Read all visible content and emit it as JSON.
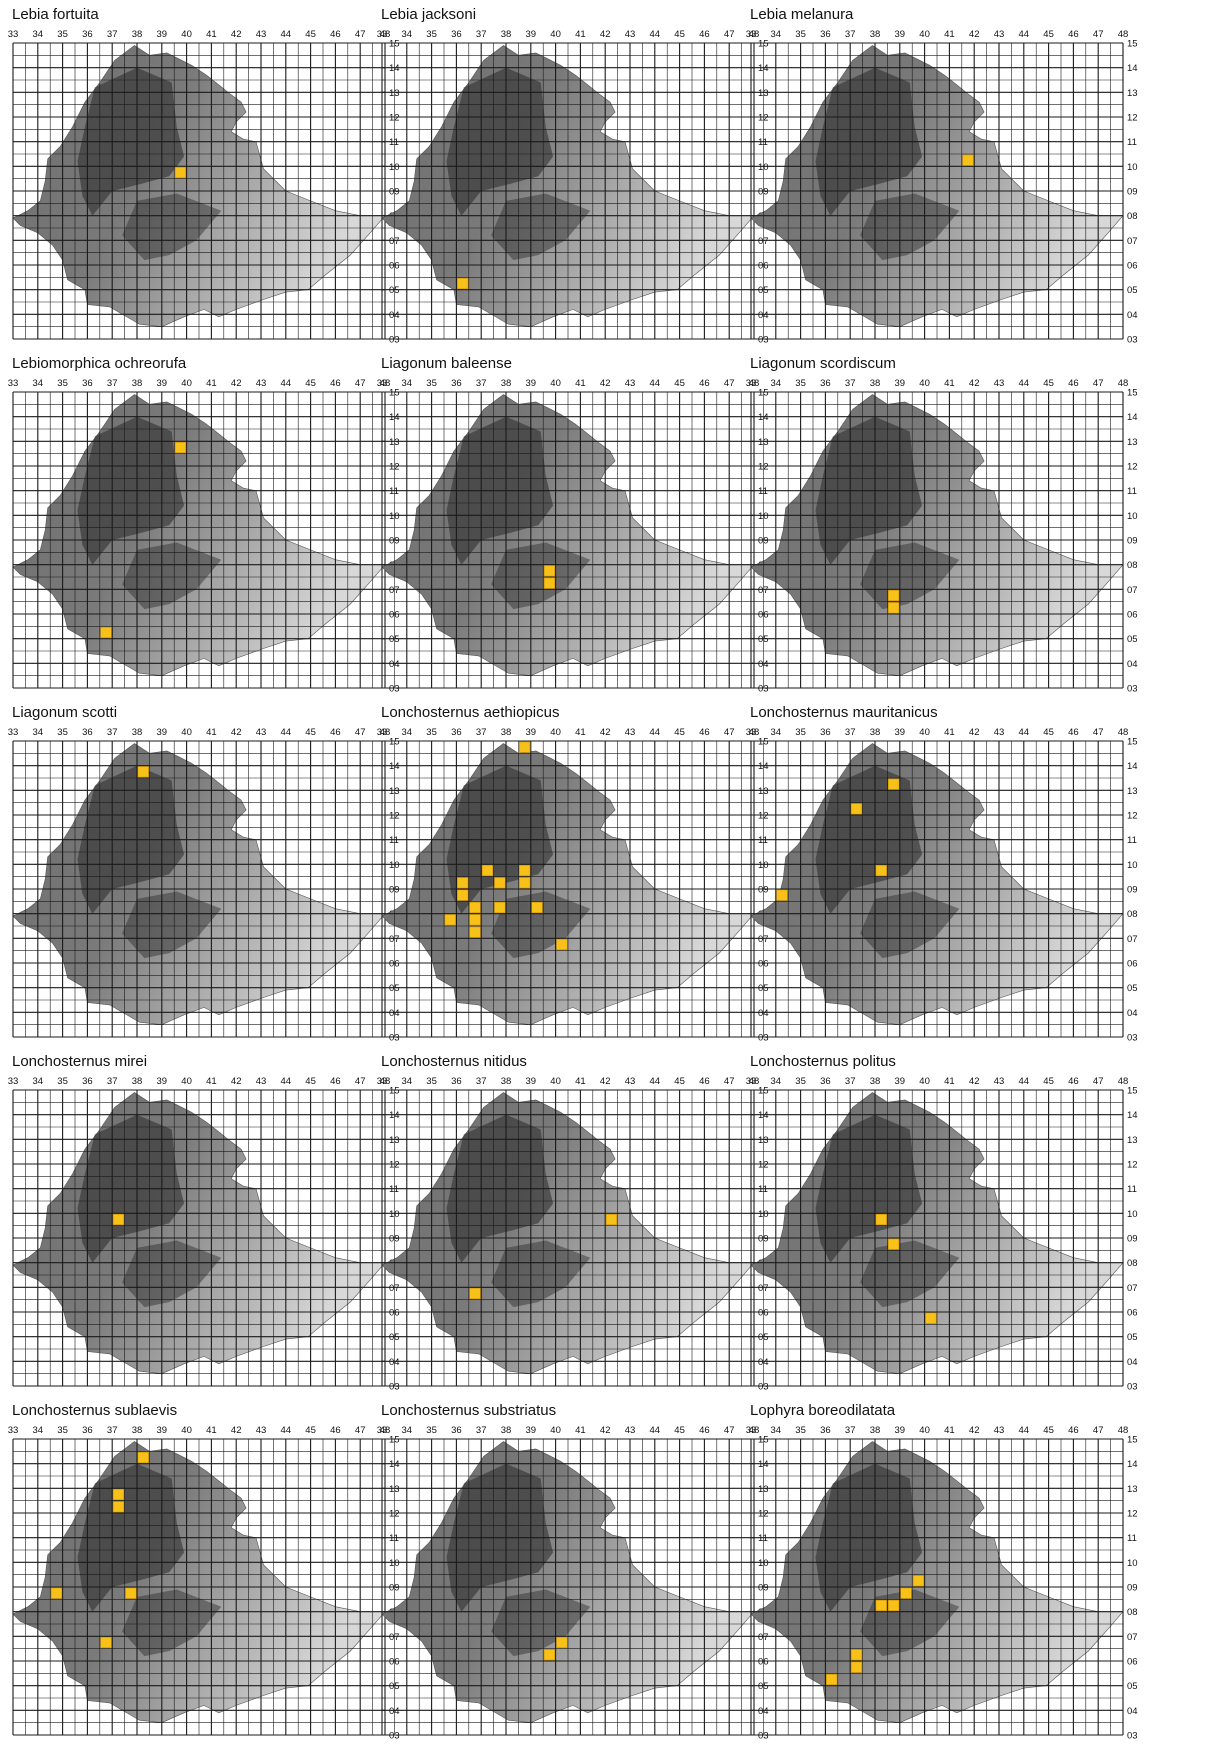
{
  "map": {
    "lon_ticks": [
      "33",
      "34",
      "35",
      "36",
      "37",
      "38",
      "39",
      "40",
      "41",
      "42",
      "43",
      "44",
      "45",
      "46",
      "47",
      "48"
    ],
    "lat_ticks": [
      "15",
      "14",
      "13",
      "12",
      "11",
      "10",
      "09",
      "08",
      "07",
      "06",
      "05",
      "04",
      "03"
    ],
    "lon_range": [
      33,
      48
    ],
    "lat_range": [
      3,
      15
    ],
    "grid_cell_degrees": 0.5,
    "colors": {
      "occurrence": "#F8C11A",
      "occurrence_edge": "#C98E00",
      "grid_line": "#1a1a1a",
      "relief_dark": "#2a2a2a",
      "relief_light": "#d8d8d8"
    }
  },
  "panels": [
    {
      "species": "Lebia fortuita",
      "records": [
        [
          39.75,
          9.75
        ]
      ]
    },
    {
      "species": "Lebia jacksoni",
      "records": [
        [
          36.25,
          5.25
        ]
      ]
    },
    {
      "species": "Lebia melanura",
      "records": [
        [
          41.75,
          10.25
        ]
      ]
    },
    {
      "species": "Lebiomorphica ochreorufa",
      "records": [
        [
          39.75,
          12.75
        ],
        [
          36.75,
          5.25
        ]
      ]
    },
    {
      "species": "Liagonum baleense",
      "records": [
        [
          39.75,
          7.75
        ],
        [
          39.75,
          7.25
        ]
      ]
    },
    {
      "species": "Liagonum scordiscum",
      "records": [
        [
          38.75,
          6.75
        ],
        [
          38.75,
          6.25
        ]
      ]
    },
    {
      "species": "Liagonum scotti",
      "records": [
        [
          38.25,
          13.75
        ]
      ]
    },
    {
      "species": "Lonchosternus aethiopicus",
      "records": [
        [
          38.75,
          14.75
        ],
        [
          37.25,
          9.75
        ],
        [
          38.75,
          9.75
        ],
        [
          36.25,
          9.25
        ],
        [
          37.75,
          9.25
        ],
        [
          38.75,
          9.25
        ],
        [
          36.25,
          8.75
        ],
        [
          36.75,
          8.25
        ],
        [
          37.75,
          8.25
        ],
        [
          39.25,
          8.25
        ],
        [
          35.75,
          7.75
        ],
        [
          36.75,
          7.75
        ],
        [
          36.75,
          7.25
        ],
        [
          40.25,
          6.75
        ]
      ]
    },
    {
      "species": "Lonchosternus mauritanicus",
      "records": [
        [
          38.75,
          13.25
        ],
        [
          37.25,
          12.25
        ],
        [
          38.25,
          9.75
        ],
        [
          34.25,
          8.75
        ]
      ]
    },
    {
      "species": "Lonchosternus mirei",
      "records": [
        [
          37.25,
          9.75
        ]
      ]
    },
    {
      "species": "Lonchosternus nitidus",
      "records": [
        [
          42.25,
          9.75
        ],
        [
          36.75,
          6.75
        ]
      ]
    },
    {
      "species": "Lonchosternus politus",
      "records": [
        [
          38.25,
          9.75
        ],
        [
          38.75,
          8.75
        ],
        [
          40.25,
          5.75
        ]
      ]
    },
    {
      "species": "Lonchosternus sublaevis",
      "records": [
        [
          38.25,
          14.25
        ],
        [
          37.25,
          12.75
        ],
        [
          37.25,
          12.25
        ],
        [
          34.75,
          8.75
        ],
        [
          37.75,
          8.75
        ],
        [
          36.75,
          6.75
        ]
      ]
    },
    {
      "species": "Lonchosternus substriatus",
      "records": [
        [
          40.25,
          6.75
        ],
        [
          39.75,
          6.25
        ]
      ]
    },
    {
      "species": "Lophyra boreodilatata",
      "records": [
        [
          39.75,
          9.25
        ],
        [
          39.25,
          8.75
        ],
        [
          38.25,
          8.25
        ],
        [
          38.75,
          8.25
        ],
        [
          37.25,
          6.25
        ],
        [
          37.25,
          5.75
        ],
        [
          36.25,
          5.25
        ]
      ]
    }
  ]
}
